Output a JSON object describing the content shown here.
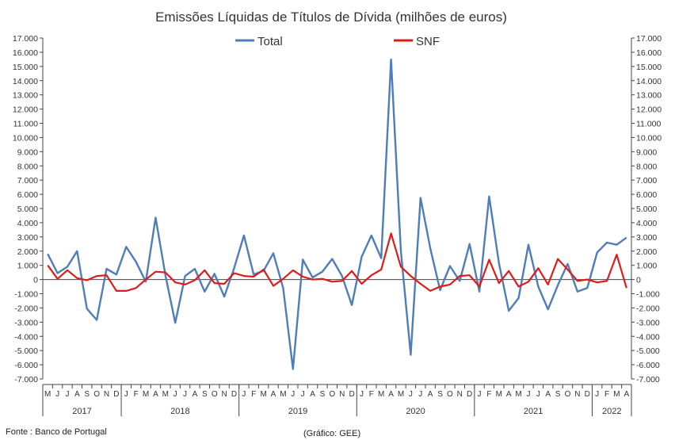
{
  "chart_data": {
    "type": "line",
    "title": "Emissões Líquidas de Títulos de Dívida (milhões de euros)",
    "xlabel": "",
    "ylabel": "",
    "ylim": [
      -7000,
      17000
    ],
    "y_ticks": [
      "17.000",
      "16.000",
      "15.000",
      "14.000",
      "13.000",
      "12.000",
      "11.000",
      "10.000",
      "9.000",
      "8.000",
      "7.000",
      "6.000",
      "5.000",
      "4.000",
      "3.000",
      "2.000",
      "1.000",
      "0",
      "-1.000",
      "-2.000",
      "-3.000",
      "-4.000",
      "-5.000",
      "-6.000",
      "-7.000"
    ],
    "legend_placement": "top-center",
    "grid": false,
    "month_labels": [
      "M",
      "J",
      "J",
      "A",
      "S",
      "O",
      "N",
      "D",
      "J",
      "F",
      "M",
      "A",
      "M",
      "J",
      "J",
      "A",
      "S",
      "O",
      "N",
      "D",
      "J",
      "F",
      "M",
      "A",
      "M",
      "J",
      "J",
      "A",
      "S",
      "O",
      "N",
      "D",
      "J",
      "F",
      "M",
      "A",
      "M",
      "J",
      "J",
      "A",
      "S",
      "O",
      "N",
      "D",
      "J",
      "F",
      "M",
      "A",
      "M",
      "J",
      "J",
      "A",
      "S",
      "O",
      "N",
      "D",
      "J",
      "F",
      "M",
      "A"
    ],
    "years": [
      {
        "label": "2017",
        "start": 0,
        "end": 8
      },
      {
        "label": "2018",
        "start": 8,
        "end": 20
      },
      {
        "label": "2019",
        "start": 20,
        "end": 32
      },
      {
        "label": "2020",
        "start": 32,
        "end": 44
      },
      {
        "label": "2021",
        "start": 44,
        "end": 56
      },
      {
        "label": "2022",
        "start": 56,
        "end": 60
      }
    ],
    "series": [
      {
        "name": "Total",
        "color": "#4f7db8",
        "values": [
          1800,
          450,
          900,
          2000,
          -2050,
          -2850,
          750,
          350,
          2300,
          1250,
          -150,
          4350,
          300,
          -3050,
          250,
          750,
          -850,
          400,
          -1200,
          800,
          3100,
          350,
          600,
          1850,
          -600,
          -6300,
          1400,
          150,
          550,
          1450,
          250,
          -1800,
          1600,
          3100,
          1500,
          15500,
          2000,
          -5300,
          5750,
          2200,
          -750,
          950,
          -100,
          2500,
          -850,
          5850,
          1150,
          -2200,
          -1300,
          2450,
          -500,
          -2100,
          -400,
          1100,
          -850,
          -600,
          1900,
          2600,
          2450,
          2950
        ]
      },
      {
        "name": "SNF",
        "color": "#dd1c1c",
        "values": [
          1000,
          50,
          650,
          100,
          -50,
          250,
          300,
          -800,
          -800,
          -600,
          0,
          550,
          500,
          -200,
          -350,
          -50,
          650,
          -250,
          -300,
          450,
          250,
          200,
          700,
          -450,
          50,
          650,
          200,
          0,
          50,
          -150,
          -100,
          600,
          -300,
          300,
          700,
          3250,
          900,
          250,
          -300,
          -800,
          -500,
          -350,
          250,
          300,
          -500,
          1400,
          -250,
          600,
          -500,
          -150,
          800,
          -350,
          1450,
          700,
          -100,
          0,
          -200,
          -100,
          1750,
          -600
        ]
      }
    ]
  },
  "footer": {
    "source": "Fonte : Banco de Portugal",
    "credit": "(Gráfico: GEE)"
  }
}
